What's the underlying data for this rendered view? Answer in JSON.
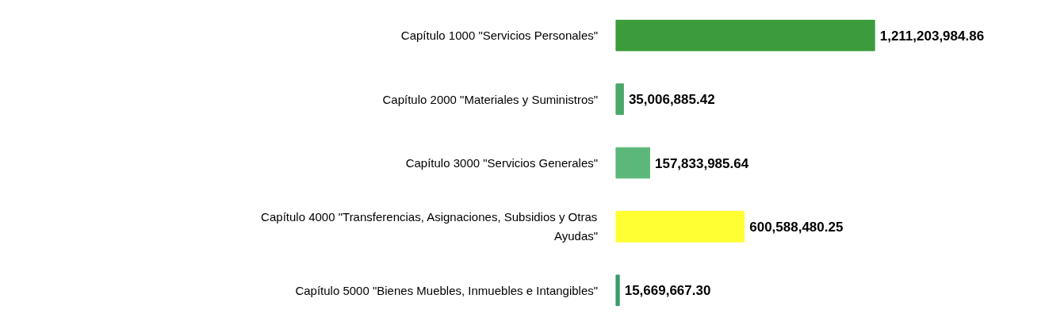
{
  "chart_data": {
    "type": "bar",
    "orientation": "horizontal",
    "categories": [
      "Capítulo 1000 \"Servicios Personales\"",
      "Capítulo 2000 \"Materiales y Suministros\"",
      "Capítulo 3000 \"Servicios Generales\"",
      "Capítulo 4000 \"Transferencias, Asignaciones, Subsidios y Otras Ayudas\"",
      "Capítulo 5000 \"Bienes Muebles, Inmuebles e Intangibles\""
    ],
    "values": [
      1211203984.86,
      35006885.42,
      157833985.64,
      600588480.25,
      15669667.3
    ],
    "colors": [
      "#3c9c3c",
      "#4aa86a",
      "#5cb87a",
      "#ffff33",
      "#3a9a6c"
    ],
    "value_labels": [
      "1,211,203,984.86",
      "35,006,885.42",
      "157,833,985.64",
      "600,588,480.25",
      "15,669,667.30"
    ]
  }
}
